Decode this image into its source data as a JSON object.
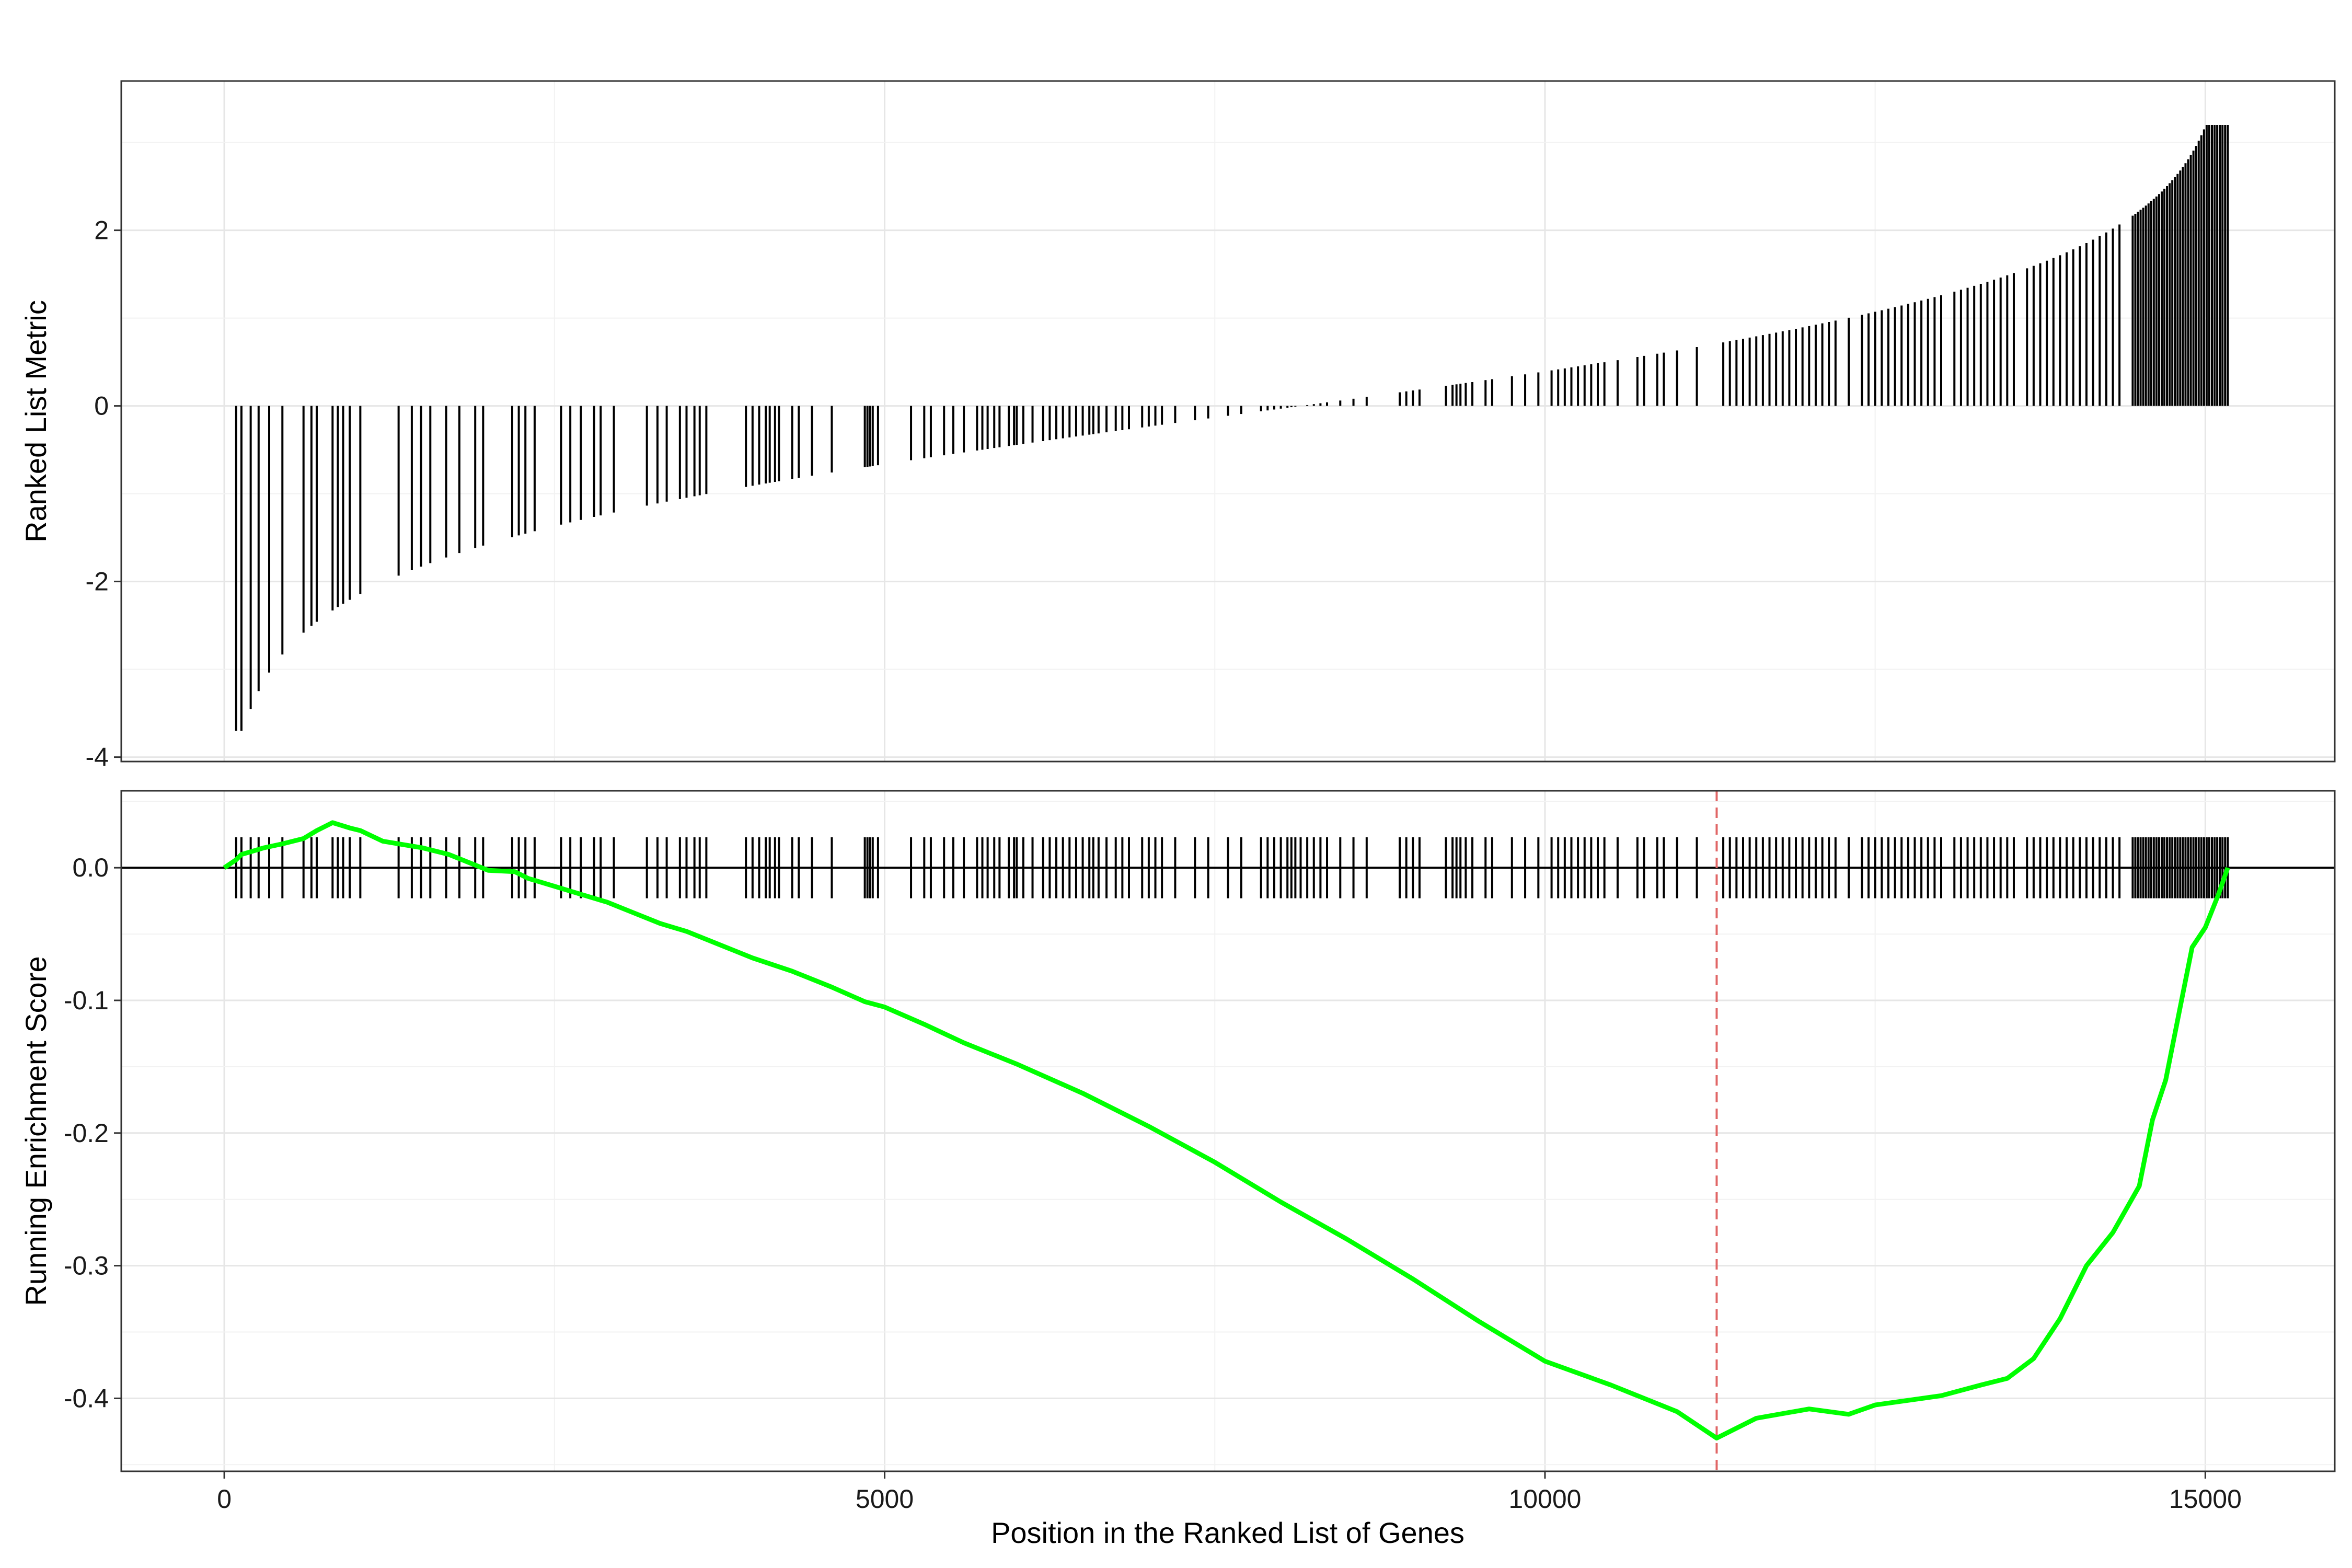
{
  "chart_data": [
    {
      "type": "bar",
      "panel": "ranked-list-metric",
      "title": "",
      "ylabel": "Ranked List Metric",
      "xlabel": "",
      "xlim": [
        -780,
        15980
      ],
      "ylim": [
        -4.05,
        3.7
      ],
      "x_ticks": [
        0,
        5000,
        10000,
        15000
      ],
      "x_tick_labels": [
        "",
        "",
        "",
        ""
      ],
      "y_ticks": [
        2,
        0,
        -2,
        -4
      ],
      "y_tick_labels": [
        "2",
        "0",
        "-2",
        "-4"
      ],
      "grid": true,
      "bar_color": "#000000",
      "metric_curve_note": "value of each hit gene in ranked list",
      "positions": [
        90,
        130,
        200,
        260,
        340,
        440,
        600,
        660,
        700,
        820,
        860,
        900,
        950,
        1030,
        1320,
        1420,
        1490,
        1560,
        1680,
        1780,
        1900,
        1960,
        2180,
        2230,
        2280,
        2350,
        2550,
        2620,
        2700,
        2800,
        2850,
        2950,
        3200,
        3280,
        3350,
        3450,
        3500,
        3560,
        3600,
        3650,
        3950,
        4000,
        4050,
        4100,
        4130,
        4170,
        4200,
        4300,
        4350,
        4450,
        4600,
        4850,
        4870,
        4890,
        4910,
        4950,
        5200,
        5300,
        5350,
        5450,
        5520,
        5600,
        5700,
        5740,
        5780,
        5830,
        5870,
        5940,
        5980,
        6000,
        6050,
        6120,
        6200,
        6250,
        6300,
        6350,
        6400,
        6450,
        6500,
        6550,
        6580,
        6620,
        6680,
        6750,
        6800,
        6850,
        6950,
        7000,
        7050,
        7100,
        7200,
        7350,
        7450,
        7600,
        7700,
        7850,
        7900,
        7950,
        8000,
        8050,
        8080,
        8110,
        8150,
        8200,
        8250,
        8300,
        8350,
        8450,
        8550,
        8650,
        8900,
        8950,
        9000,
        9050,
        9250,
        9300,
        9330,
        9360,
        9400,
        9450,
        9550,
        9600,
        9750,
        9850,
        9950,
        10050,
        10100,
        10150,
        10200,
        10250,
        10300,
        10350,
        10400,
        10450,
        10550,
        10700,
        10750,
        10850,
        10900,
        11000,
        11150,
        11350,
        11400,
        11450,
        11500,
        11550,
        11600,
        11650,
        11700,
        11750,
        11800,
        11850,
        11900,
        11950,
        12000,
        12050,
        12100,
        12150,
        12200,
        12300,
        12400,
        12450,
        12500,
        12550,
        12600,
        12650,
        12700,
        12750,
        12800,
        12850,
        12900,
        12950,
        13000,
        13100,
        13150,
        13200,
        13250,
        13300,
        13350,
        13400,
        13450,
        13500,
        13550,
        13650,
        13700,
        13750,
        13800,
        13850,
        13900,
        13950,
        14000,
        14050,
        14100,
        14150,
        14200,
        14250,
        14300,
        14350,
        14450,
        14470,
        14490,
        14510,
        14530,
        14550,
        14570,
        14590,
        14610,
        14630,
        14650,
        14670,
        14690,
        14710,
        14730,
        14750,
        14770,
        14790,
        14810,
        14830,
        14850,
        14870,
        14890,
        14910,
        14930,
        14950,
        14970,
        14990,
        15010,
        15030,
        15050,
        15070,
        15090,
        15110,
        15130,
        15150,
        15170
      ]
    },
    {
      "type": "line",
      "panel": "running-enrichment-score",
      "title": "",
      "xlabel": "Position in the Ranked List of Genes",
      "ylabel": "Running Enrichment Score",
      "xlim": [
        -780,
        15980
      ],
      "ylim": [
        -0.455,
        0.058
      ],
      "x_ticks": [
        0,
        5000,
        10000,
        15000
      ],
      "x_tick_labels": [
        "0",
        "5000",
        "10000",
        "15000"
      ],
      "y_ticks": [
        0.0,
        -0.1,
        -0.2,
        -0.3,
        -0.4
      ],
      "y_tick_labels": [
        "0.0",
        "-0.1",
        "-0.2",
        "-0.3",
        "-0.4"
      ],
      "grid": true,
      "line_color": "#00ff00",
      "zero_line": 0,
      "hit_tick_range": [
        -0.023,
        0.023
      ],
      "min_es_position": 11300,
      "min_es_line_color": "#e06666",
      "series": [
        {
          "name": "Running Enrichment Score",
          "x": [
            0,
            90,
            130,
            200,
            300,
            440,
            600,
            700,
            820,
            950,
            1030,
            1200,
            1500,
            1700,
            1900,
            2000,
            2200,
            2300,
            2500,
            2700,
            2900,
            3100,
            3300,
            3500,
            3700,
            4000,
            4300,
            4600,
            4850,
            5000,
            5300,
            5600,
            6000,
            6500,
            7000,
            7500,
            8000,
            8500,
            9000,
            9500,
            10000,
            10500,
            11000,
            11300,
            11600,
            12000,
            12300,
            12500,
            13000,
            13300,
            13500,
            13700,
            13900,
            14100,
            14300,
            14500,
            14600,
            14700,
            14800,
            14900,
            15000,
            15100,
            15170
          ],
          "y": [
            0,
            0.006,
            0.01,
            0.012,
            0.015,
            0.018,
            0.022,
            0.028,
            0.034,
            0.03,
            0.028,
            0.02,
            0.015,
            0.01,
            0.002,
            -0.002,
            -0.003,
            -0.008,
            -0.014,
            -0.02,
            -0.026,
            -0.034,
            -0.042,
            -0.048,
            -0.056,
            -0.068,
            -0.078,
            -0.09,
            -0.101,
            -0.105,
            -0.118,
            -0.132,
            -0.148,
            -0.17,
            -0.195,
            -0.222,
            -0.252,
            -0.28,
            -0.31,
            -0.342,
            -0.372,
            -0.39,
            -0.41,
            -0.43,
            -0.415,
            -0.408,
            -0.412,
            -0.405,
            -0.398,
            -0.39,
            -0.385,
            -0.37,
            -0.34,
            -0.3,
            -0.275,
            -0.24,
            -0.19,
            -0.16,
            -0.11,
            -0.06,
            -0.045,
            -0.02,
            0.0
          ]
        }
      ]
    }
  ]
}
